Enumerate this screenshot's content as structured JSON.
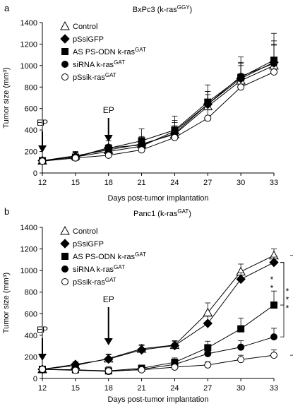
{
  "chart_data": [
    {
      "type": "line",
      "panel": "a",
      "title_prefix": "BxPc3 (k-ras",
      "title_sup": "GGY",
      "title_suffix": ")",
      "xlabel": "Days post-tumor implantation",
      "ylabel": "Tumor size (mm³)",
      "x": [
        12,
        15,
        18,
        21,
        24,
        27,
        30,
        33
      ],
      "xlim": [
        12,
        33
      ],
      "ylim": [
        0,
        1400
      ],
      "yticks": [
        0,
        200,
        400,
        600,
        800,
        1000,
        1200,
        1400
      ],
      "annotations": [
        {
          "text": "EP",
          "x": 12
        },
        {
          "text": "EP",
          "x": 18
        }
      ],
      "series": [
        {
          "name": "Control",
          "marker": "triangle-open",
          "values": [
            115,
            160,
            215,
            270,
            360,
            620,
            860,
            1000
          ],
          "errors": [
            25,
            40,
            50,
            60,
            80,
            110,
            140,
            200
          ]
        },
        {
          "name": "pSsiGFP",
          "marker": "diamond-filled",
          "values": [
            115,
            150,
            235,
            260,
            370,
            640,
            880,
            1030
          ],
          "errors": [
            25,
            45,
            90,
            80,
            100,
            120,
            140,
            200
          ]
        },
        {
          "name": "AS PS-ODN k-ras",
          "name_sup": "GAT",
          "marker": "square-filled",
          "values": [
            115,
            148,
            230,
            300,
            400,
            660,
            890,
            1050
          ],
          "errors": [
            25,
            40,
            70,
            110,
            130,
            160,
            190,
            250
          ]
        },
        {
          "name": "siRNA k-ras",
          "name_sup": "GAT",
          "marker": "circle-filled",
          "values": [
            115,
            150,
            200,
            250,
            390,
            640,
            900,
            1020
          ],
          "errors": [
            25,
            40,
            50,
            60,
            100,
            120,
            130,
            170
          ]
        },
        {
          "name": "pSsik-ras",
          "name_sup": "GAT",
          "marker": "circle-open",
          "values": [
            110,
            140,
            165,
            215,
            330,
            510,
            800,
            940
          ],
          "errors": [
            20,
            30,
            40,
            50,
            60,
            80,
            100,
            120
          ]
        }
      ]
    },
    {
      "type": "line",
      "panel": "b",
      "title_prefix": "Panc1 (k-ras",
      "title_sup": "GAT",
      "title_suffix": ")",
      "xlabel": "Days post-tumor implantation",
      "ylabel": "Tumor size (mm³)",
      "x": [
        12,
        15,
        18,
        21,
        24,
        27,
        30,
        33
      ],
      "xlim": [
        12,
        33
      ],
      "ylim": [
        0,
        1400
      ],
      "yticks": [
        0,
        200,
        400,
        600,
        800,
        1000,
        1200,
        1400
      ],
      "annotations": [
        {
          "text": "EP",
          "x": 12
        },
        {
          "text": "EP",
          "x": 18
        }
      ],
      "significance": [
        {
          "label": "**",
          "from": "pSsiGFP",
          "to": "AS PS-ODN k-ras"
        },
        {
          "label": "***",
          "from": "pSsiGFP",
          "to": "siRNA k-ras"
        },
        {
          "label": "***",
          "from": "Control",
          "to": "pSsik-ras"
        }
      ],
      "series": [
        {
          "name": "Control",
          "marker": "triangle-open",
          "values": [
            85,
            120,
            185,
            275,
            310,
            610,
            990,
            1140
          ],
          "errors": [
            20,
            25,
            40,
            40,
            40,
            90,
            70,
            60
          ]
        },
        {
          "name": "pSsiGFP",
          "marker": "diamond-filled",
          "values": [
            85,
            130,
            180,
            265,
            305,
            510,
            920,
            1075
          ],
          "errors": [
            20,
            25,
            40,
            40,
            40,
            70,
            60,
            50
          ]
        },
        {
          "name": "AS PS-ODN k-ras",
          "name_sup": "GAT",
          "marker": "square-filled",
          "values": [
            85,
            80,
            70,
            95,
            150,
            285,
            460,
            680
          ],
          "errors": [
            20,
            20,
            40,
            30,
            40,
            60,
            100,
            130
          ]
        },
        {
          "name": "siRNA k-ras",
          "name_sup": "GAT",
          "marker": "circle-filled",
          "values": [
            85,
            80,
            65,
            85,
            130,
            230,
            290,
            385
          ],
          "errors": [
            20,
            20,
            30,
            30,
            40,
            60,
            60,
            80
          ]
        },
        {
          "name": "pSsik-ras",
          "name_sup": "GAT",
          "marker": "circle-open",
          "values": [
            85,
            75,
            70,
            80,
            105,
            125,
            175,
            215
          ],
          "errors": [
            20,
            15,
            30,
            20,
            30,
            30,
            40,
            50
          ]
        }
      ]
    }
  ]
}
